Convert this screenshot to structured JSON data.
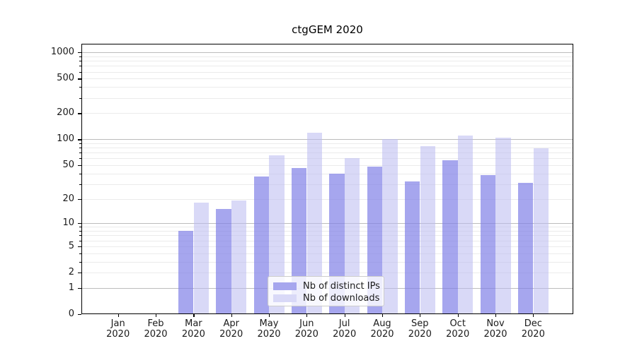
{
  "title": "ctgGEM 2020",
  "chart_data": {
    "type": "bar",
    "title": "ctgGEM 2020",
    "yscale": "log1p",
    "ylim": [
      0,
      1250
    ],
    "grid": true,
    "legend_position": "lower-center",
    "yticks": [
      0,
      1,
      2,
      5,
      10,
      20,
      50,
      100,
      200,
      500,
      1000
    ],
    "categories": [
      "Jan 2020",
      "Feb 2020",
      "Mar 2020",
      "Apr 2020",
      "May 2020",
      "Jun 2020",
      "Jul 2020",
      "Aug 2020",
      "Sep 2020",
      "Oct 2020",
      "Nov 2020",
      "Dec 2020"
    ],
    "series": [
      {
        "name": "Nb of distinct IPs",
        "color": "#a6a6ee",
        "fill": "rgba(128,128,231,0.7)",
        "values": [
          0,
          0,
          8,
          15,
          37,
          46,
          40,
          48,
          32,
          57,
          38,
          31
        ]
      },
      {
        "name": "Nb of downloads",
        "color": "#d9d9f7",
        "fill": "rgba(186,186,240,0.55)",
        "values": [
          0,
          0,
          18,
          19,
          65,
          120,
          60,
          100,
          84,
          110,
          105,
          79
        ]
      }
    ]
  }
}
